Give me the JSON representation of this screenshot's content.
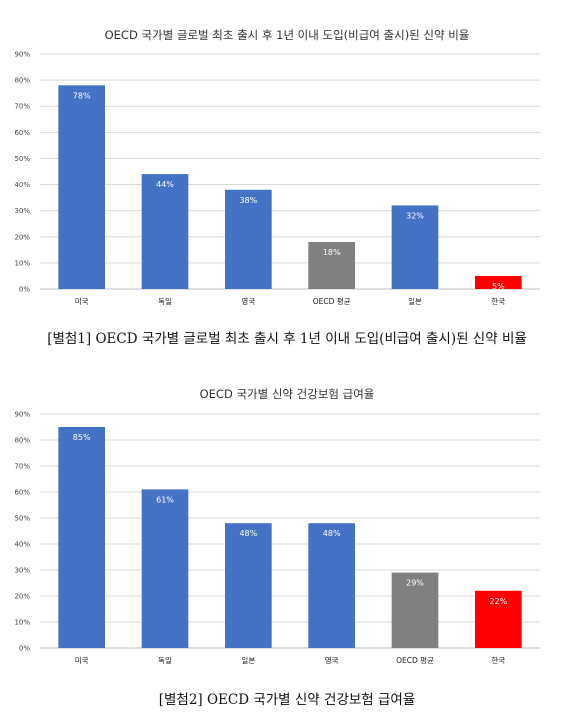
{
  "chart_data": [
    {
      "type": "bar",
      "title": "OECD 국가별 글로벌 최초 출시 후 1년 이내 도입(비급여 출시)된 신약 비율",
      "categories": [
        "미국",
        "독일",
        "영국",
        "OECD 평균",
        "일본",
        "한국"
      ],
      "values": [
        78,
        44,
        38,
        18,
        32,
        5
      ],
      "data_labels": [
        "78%",
        "44%",
        "38%",
        "18%",
        "32%",
        "5%"
      ],
      "bar_colors": [
        "#4472c4",
        "#4472c4",
        "#4472c4",
        "#808080",
        "#4472c4",
        "#ff0000"
      ],
      "ylim": [
        0,
        90
      ],
      "yticks": [
        "0%",
        "10%",
        "20%",
        "30%",
        "40%",
        "50%",
        "60%",
        "70%",
        "80%",
        "90%"
      ],
      "grid": true,
      "caption": "[별첨1] OECD 국가별 글로벌 최초 출시 후 1년 이내 도입(비급여 출시)된 신약 비율"
    },
    {
      "type": "bar",
      "title": "OECD 국가별 신약 건강보험 급여율",
      "categories": [
        "미국",
        "독일",
        "일본",
        "영국",
        "OECD 평균",
        "한국"
      ],
      "values": [
        85,
        61,
        48,
        48,
        29,
        22
      ],
      "data_labels": [
        "85%",
        "61%",
        "48%",
        "48%",
        "29%",
        "22%"
      ],
      "bar_colors": [
        "#4472c4",
        "#4472c4",
        "#4472c4",
        "#4472c4",
        "#808080",
        "#ff0000"
      ],
      "ylim": [
        0,
        90
      ],
      "yticks": [
        "0%",
        "10%",
        "20%",
        "30%",
        "40%",
        "50%",
        "60%",
        "70%",
        "80%",
        "90%"
      ],
      "grid": true,
      "caption": "[별첨2] OECD 국가별 신약 건강보험 급여율"
    }
  ]
}
